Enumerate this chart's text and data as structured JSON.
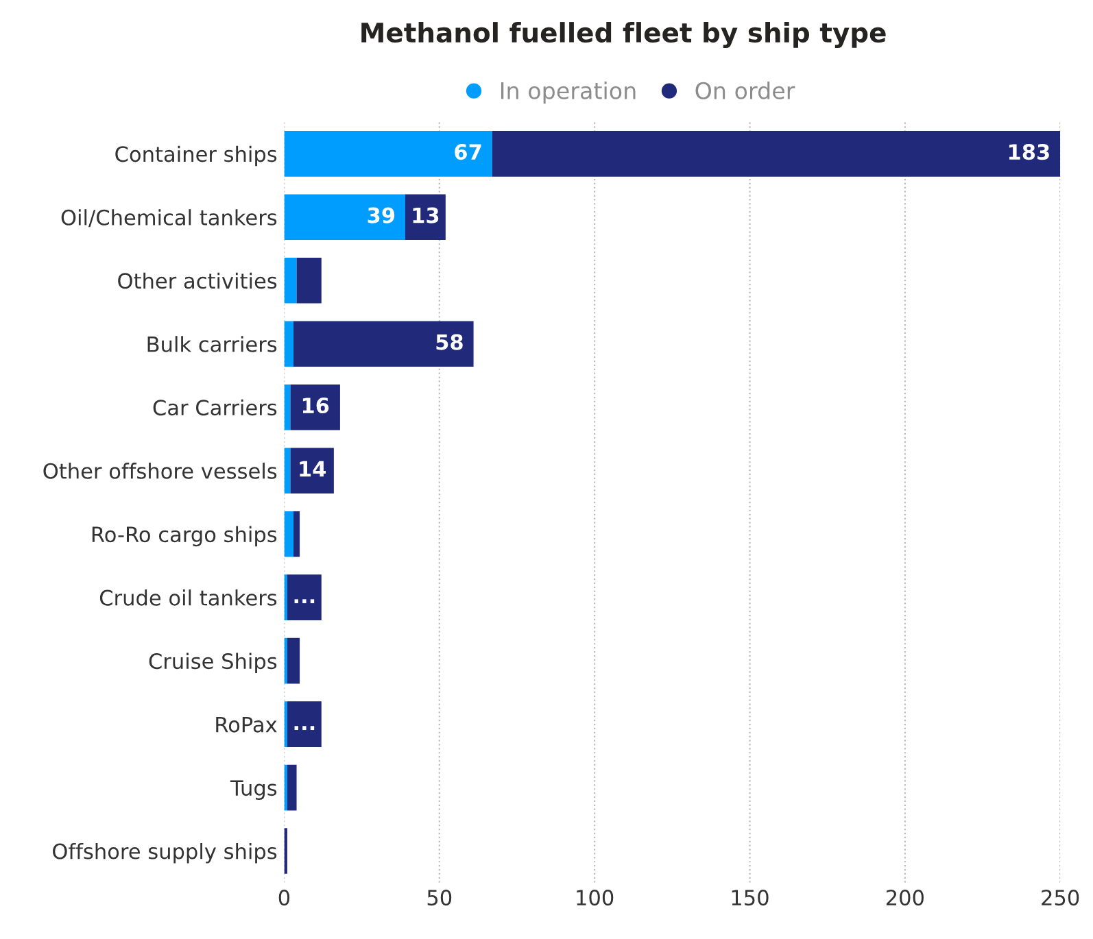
{
  "chart_data": {
    "type": "bar",
    "orientation": "horizontal",
    "stacked": true,
    "title": "Methanol fuelled fleet by ship type",
    "categories": [
      "Container ships",
      "Oil/Chemical tankers",
      "Other activities",
      "Bulk carriers",
      "Car Carriers",
      "Other offshore vessels",
      "Ro-Ro cargo ships",
      "Crude oil tankers",
      "Cruise Ships",
      "RoPax",
      "Tugs",
      "Offshore supply ships"
    ],
    "series": [
      {
        "name": "In operation",
        "color": "#009dfe",
        "values": [
          67,
          39,
          4,
          3,
          2,
          2,
          3,
          1,
          1,
          1,
          1,
          0
        ],
        "value_labels": [
          "67",
          "39",
          null,
          null,
          null,
          null,
          null,
          null,
          null,
          null,
          null,
          null
        ]
      },
      {
        "name": "On order",
        "color": "#212a7a",
        "values": [
          183,
          13,
          8,
          58,
          16,
          14,
          2,
          11,
          4,
          11,
          3,
          1
        ],
        "value_labels": [
          "183",
          "13",
          null,
          "58",
          "16",
          "14",
          null,
          "...",
          null,
          "...",
          null,
          null
        ]
      }
    ],
    "xlim": [
      0,
      250
    ],
    "xticks": [
      0,
      50,
      100,
      150,
      200,
      250
    ],
    "grid": "x",
    "legend": "top"
  }
}
